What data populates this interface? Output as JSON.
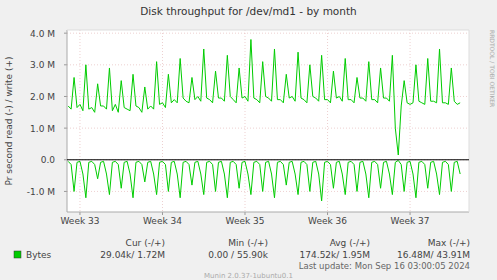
{
  "chart_data": {
    "type": "line",
    "title": "Disk throughput for /dev/md1 - by month",
    "y_label": "Pr second read (-) / write (+)",
    "x": [
      -1,
      -0.75,
      -0.5,
      -0.25,
      0,
      0.25,
      0.5,
      0.75,
      1,
      1.25,
      1.5,
      1.75,
      2,
      2.25,
      2.5,
      2.75,
      3,
      3.25,
      3.5,
      3.75,
      4,
      4.25,
      4.5,
      4.75,
      5,
      5.25,
      5.5,
      5.75,
      6,
      6.25,
      6.5,
      6.75,
      7,
      7.25,
      7.5,
      7.75,
      8,
      8.25,
      8.5,
      8.75,
      9,
      9.25,
      9.5,
      9.75,
      10,
      10.25,
      10.5,
      10.75,
      11,
      11.25,
      11.5,
      11.75,
      12,
      12.25,
      12.5,
      12.75,
      13,
      13.25,
      13.5,
      13.75,
      14,
      14.25,
      14.5,
      14.75,
      15,
      15.25,
      15.5,
      15.75,
      16,
      16.25,
      16.5,
      16.75,
      17,
      17.25,
      17.5,
      17.75,
      18,
      18.25,
      18.5,
      18.75,
      19,
      19.25,
      19.5,
      19.75,
      20,
      20.25,
      20.5,
      20.75,
      21,
      21.25,
      21.5,
      21.75,
      22,
      22.25,
      22.5,
      22.75,
      23,
      23.25,
      23.5,
      23.75,
      24,
      24.25,
      24.5,
      24.75,
      25,
      25.25,
      25.5,
      25.75,
      26,
      26.25,
      26.5,
      26.75,
      27,
      27.25,
      27.5,
      27.75,
      28,
      28.25,
      28.5,
      28.75,
      29,
      29.25,
      29.5,
      29.75,
      30,
      30.25,
      30.5,
      30.75,
      31,
      31.25,
      31.5,
      31.75,
      32,
      32.25
    ],
    "xlim": [
      -1.1,
      33.0
    ],
    "xticks": [
      {
        "value": 0,
        "label": "Week 33"
      },
      {
        "value": 7,
        "label": "Week 34"
      },
      {
        "value": 14,
        "label": "Week 35"
      },
      {
        "value": 21,
        "label": "Week 36"
      },
      {
        "value": 28,
        "label": "Week 37"
      }
    ],
    "ylim": [
      -1650000,
      4100000
    ],
    "yticks": [
      {
        "value": -1000000,
        "label": "-1.0 M"
      },
      {
        "value": 0,
        "label": "0.0"
      },
      {
        "value": 1000000,
        "label": "1.0 M"
      },
      {
        "value": 2000000,
        "label": "2.0 M"
      },
      {
        "value": 3000000,
        "label": "3.0 M"
      },
      {
        "value": 4000000,
        "label": "4.0 M"
      }
    ],
    "grid": true,
    "legend": "bottom-left",
    "series": [
      {
        "name": "Bytes",
        "color": "#00cc00",
        "values": [
          1700000,
          1600000,
          2600000,
          1650000,
          1750000,
          1550000,
          3000000,
          1600000,
          1650000,
          1500000,
          2400000,
          1700000,
          1700000,
          1600000,
          2900000,
          1550000,
          1750000,
          1500000,
          2500000,
          1650000,
          1600000,
          1550000,
          2700000,
          1700000,
          1650000,
          1500000,
          2300000,
          1600000,
          1700000,
          1600000,
          3100000,
          1750000,
          1800000,
          1650000,
          2700000,
          1800000,
          1900000,
          1800000,
          3200000,
          1950000,
          1850000,
          1800000,
          2600000,
          1900000,
          2000000,
          1850000,
          3500000,
          1950000,
          1900000,
          1800000,
          2800000,
          1950000,
          1950000,
          1850000,
          3300000,
          2000000,
          1900000,
          1800000,
          2900000,
          1950000,
          2000000,
          1850000,
          3800000,
          1950000,
          1900000,
          1800000,
          3100000,
          2000000,
          1950000,
          1850000,
          3500000,
          1900000,
          1900000,
          1800000,
          2700000,
          1950000,
          2000000,
          1850000,
          3400000,
          1950000,
          1900000,
          1800000,
          3000000,
          2000000,
          1950000,
          1850000,
          3300000,
          1900000,
          1900000,
          1800000,
          2800000,
          1950000,
          2000000,
          1850000,
          3200000,
          1900000,
          1900000,
          1800000,
          2600000,
          1950000,
          1950000,
          1850000,
          3100000,
          1900000,
          1900000,
          1800000,
          2900000,
          1950000,
          1950000,
          1850000,
          3300000,
          1000000,
          150000,
          1700000,
          2500000,
          1800000,
          1750000,
          1800000,
          3000000,
          1850000,
          1800000,
          1750000,
          3200000,
          1850000,
          1850000,
          1800000,
          3500000,
          1800000,
          1800000,
          1750000,
          2900000,
          1850000,
          1750000,
          1800000
        ]
      },
      {
        "color": "#00cc00",
        "values": [
          -50000,
          -150000,
          -1000000,
          -80000,
          -50000,
          -450000,
          -1200000,
          -80000,
          -50000,
          -150000,
          -600000,
          -80000,
          -50000,
          -450000,
          -1100000,
          -80000,
          -50000,
          -150000,
          -900000,
          -80000,
          -50000,
          -450000,
          -1200000,
          -80000,
          -50000,
          -150000,
          -700000,
          -80000,
          -50000,
          -450000,
          -1100000,
          -80000,
          -50000,
          -150000,
          -1000000,
          -80000,
          -50000,
          -450000,
          -1200000,
          -80000,
          -50000,
          -150000,
          -800000,
          -80000,
          -50000,
          -450000,
          -1100000,
          -80000,
          -50000,
          -150000,
          -1000000,
          -80000,
          -50000,
          -450000,
          -1200000,
          -80000,
          -50000,
          -150000,
          -900000,
          -80000,
          -50000,
          -450000,
          -1100000,
          -80000,
          -50000,
          -150000,
          -1000000,
          -80000,
          -50000,
          -450000,
          -1200000,
          -80000,
          -50000,
          -150000,
          -800000,
          -80000,
          -50000,
          -450000,
          -1100000,
          -80000,
          -50000,
          -150000,
          -1000000,
          -80000,
          -50000,
          -450000,
          -1300000,
          -80000,
          -50000,
          -150000,
          -900000,
          -80000,
          -50000,
          -450000,
          -1100000,
          -80000,
          -50000,
          -150000,
          -1000000,
          -80000,
          -50000,
          -450000,
          -1200000,
          -80000,
          -50000,
          -150000,
          -900000,
          -80000,
          -50000,
          -450000,
          -1100000,
          -80000,
          -20000,
          -150000,
          -1000000,
          -80000,
          -50000,
          -450000,
          -1200000,
          -80000,
          -50000,
          -150000,
          -900000,
          -80000,
          -50000,
          -450000,
          -1100000,
          -80000,
          -50000,
          -150000,
          -1000000,
          -80000,
          -50000,
          -450000
        ]
      }
    ],
    "legend_table": {
      "columns": [
        "Cur (-/+)",
        "Min (-/+)",
        "Avg (-/+)",
        "Max (-/+)"
      ],
      "rows": [
        [
          "29.04k/  1.72M",
          "0.00 / 55.90k",
          "174.52k/  1.95M",
          "16.48M/ 43.91M"
        ]
      ]
    },
    "footer": "Last update: Mon Sep 16 03:00:05 2024",
    "credit": "Munin 2.0.37-1ubuntu0.1",
    "watermark": "RRDTOOL / TOBI OETIKER"
  }
}
